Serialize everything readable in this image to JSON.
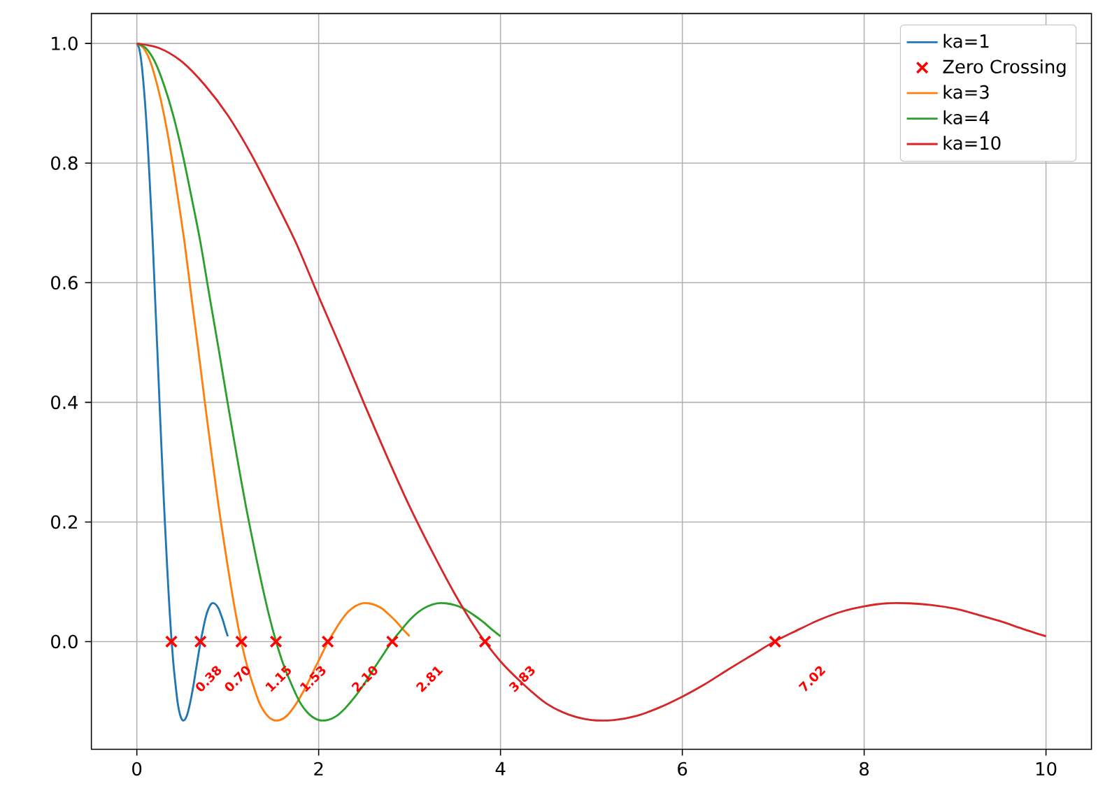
{
  "chart_data": {
    "type": "line",
    "xlim": [
      -0.5,
      10.5
    ],
    "ylim": [
      -0.18,
      1.05
    ],
    "xticks": [
      0,
      2,
      4,
      6,
      8,
      10
    ],
    "yticks": [
      {
        "value": 0,
        "label": "0.0"
      },
      {
        "value": 0.2,
        "label": "0.2"
      },
      {
        "value": 0.4,
        "label": "0.4"
      },
      {
        "value": 0.6,
        "label": "0.6"
      },
      {
        "value": 0.8,
        "label": "0.8"
      },
      {
        "value": 1.0,
        "label": "1.0"
      }
    ],
    "grid": true,
    "legend": "top right",
    "annotations": [
      {
        "text": "0.38",
        "x": 0.38,
        "y": 0
      },
      {
        "text": "0.70",
        "x": 0.7,
        "y": 0
      },
      {
        "text": "1.15",
        "x": 1.15,
        "y": 0
      },
      {
        "text": "1.53",
        "x": 1.53,
        "y": 0
      },
      {
        "text": "2.10",
        "x": 2.1,
        "y": 0
      },
      {
        "text": "2.81",
        "x": 2.81,
        "y": 0
      },
      {
        "text": "3.83",
        "x": 3.83,
        "y": 0
      },
      {
        "text": "7.02",
        "x": 7.02,
        "y": 0
      }
    ],
    "series": [
      {
        "name": "ka=1",
        "color": "#1f77b4",
        "x": [
          0,
          0.025,
          0.05,
          0.075,
          0.1,
          0.125,
          0.15,
          0.175,
          0.2,
          0.225,
          0.25,
          0.275,
          0.3,
          0.325,
          0.35,
          0.375,
          0.4,
          0.425,
          0.45,
          0.475,
          0.5,
          0.525,
          0.55,
          0.575,
          0.6,
          0.625,
          0.65,
          0.675,
          0.7,
          0.725,
          0.75,
          0.775,
          0.8,
          0.825,
          0.85,
          0.875,
          0.9,
          0.925,
          0.95,
          0.975,
          1
        ],
        "values": [
          1,
          0.992,
          0.969,
          0.93,
          0.88,
          0.817,
          0.744,
          0.667,
          0.577,
          0.489,
          0.398,
          0.31,
          0.226,
          0.15,
          0.079,
          0.017,
          -0.033,
          -0.071,
          -0.103,
          -0.122,
          -0.131,
          -0.131,
          -0.124,
          -0.11,
          -0.092,
          -0.071,
          -0.047,
          -0.024,
          -0.001,
          0.018,
          0.036,
          0.05,
          0.059,
          0.064,
          0.064,
          0.061,
          0.055,
          0.045,
          0.034,
          0.021,
          0.009
        ]
      },
      {
        "name": "Zero Crossing",
        "type": "scatter",
        "marker": "cross",
        "color": "#ff0000",
        "x": [
          0.38,
          0.7,
          1.15,
          1.53,
          2.1,
          2.81,
          3.83,
          7.02
        ],
        "values": [
          0,
          0,
          0,
          0,
          0,
          0,
          0,
          0
        ]
      },
      {
        "name": "ka=3",
        "color": "#ff7f0e",
        "x": [
          0,
          0.075,
          0.15,
          0.225,
          0.3,
          0.375,
          0.45,
          0.525,
          0.6,
          0.675,
          0.75,
          0.825,
          0.9,
          0.975,
          1.05,
          1.125,
          1.2,
          1.275,
          1.35,
          1.425,
          1.5,
          1.575,
          1.65,
          1.725,
          1.8,
          1.875,
          1.95,
          2.025,
          2.1,
          2.175,
          2.25,
          2.325,
          2.4,
          2.475,
          2.55,
          2.625,
          2.7,
          2.775,
          2.85,
          2.925,
          3
        ],
        "values": [
          1,
          0.992,
          0.969,
          0.93,
          0.88,
          0.817,
          0.744,
          0.667,
          0.577,
          0.489,
          0.398,
          0.31,
          0.226,
          0.15,
          0.079,
          0.017,
          -0.033,
          -0.071,
          -0.103,
          -0.122,
          -0.131,
          -0.131,
          -0.124,
          -0.11,
          -0.092,
          -0.071,
          -0.047,
          -0.024,
          -0.001,
          0.018,
          0.036,
          0.05,
          0.059,
          0.064,
          0.064,
          0.061,
          0.055,
          0.045,
          0.034,
          0.021,
          0.009
        ]
      },
      {
        "name": "ka=4",
        "color": "#2ca02c",
        "x": [
          0,
          0.1,
          0.2,
          0.3,
          0.4,
          0.5,
          0.6,
          0.7,
          0.8,
          0.9,
          1.0,
          1.1,
          1.2,
          1.3,
          1.4,
          1.5,
          1.6,
          1.7,
          1.8,
          1.9,
          2.0,
          2.1,
          2.2,
          2.3,
          2.4,
          2.5,
          2.6,
          2.7,
          2.8,
          2.9,
          3.0,
          3.1,
          3.2,
          3.3,
          3.4,
          3.5,
          3.6,
          3.7,
          3.8,
          3.9,
          4.0
        ],
        "values": [
          1,
          0.992,
          0.969,
          0.93,
          0.88,
          0.817,
          0.744,
          0.667,
          0.577,
          0.489,
          0.398,
          0.31,
          0.226,
          0.15,
          0.079,
          0.017,
          -0.033,
          -0.071,
          -0.103,
          -0.122,
          -0.131,
          -0.131,
          -0.124,
          -0.11,
          -0.092,
          -0.071,
          -0.047,
          -0.024,
          -0.001,
          0.018,
          0.036,
          0.05,
          0.059,
          0.064,
          0.064,
          0.061,
          0.055,
          0.045,
          0.034,
          0.021,
          0.009
        ]
      },
      {
        "name": "ka=10",
        "color": "#d62728",
        "x": [
          0,
          0.25,
          0.5,
          0.75,
          1,
          1.25,
          1.5,
          1.75,
          2,
          2.25,
          2.5,
          2.75,
          3,
          3.25,
          3.5,
          3.75,
          4,
          4.25,
          4.5,
          4.75,
          5,
          5.25,
          5.5,
          5.75,
          6,
          6.25,
          6.5,
          6.75,
          7,
          7.25,
          7.5,
          7.75,
          8,
          8.25,
          8.5,
          8.75,
          9,
          9.25,
          9.5,
          9.75,
          10
        ],
        "values": [
          1,
          0.992,
          0.969,
          0.93,
          0.88,
          0.817,
          0.744,
          0.667,
          0.577,
          0.489,
          0.398,
          0.31,
          0.226,
          0.15,
          0.079,
          0.017,
          -0.033,
          -0.071,
          -0.103,
          -0.122,
          -0.131,
          -0.131,
          -0.124,
          -0.11,
          -0.092,
          -0.071,
          -0.047,
          -0.024,
          -0.001,
          0.018,
          0.036,
          0.05,
          0.059,
          0.064,
          0.064,
          0.061,
          0.055,
          0.045,
          0.034,
          0.021,
          0.009
        ]
      }
    ]
  }
}
